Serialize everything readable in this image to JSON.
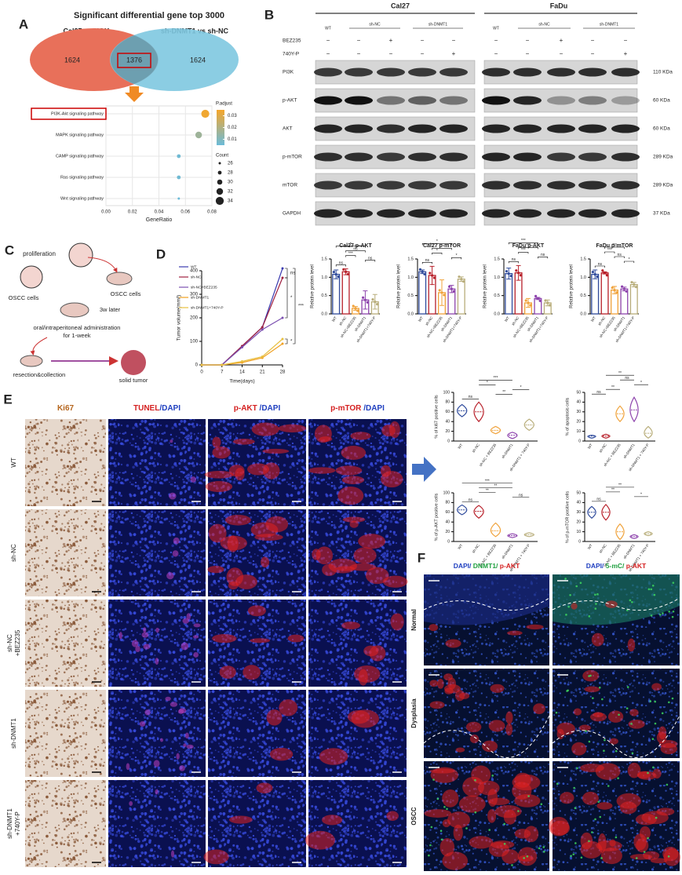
{
  "panel_labels": [
    "A",
    "B",
    "C",
    "D",
    "E",
    "F"
  ],
  "venn": {
    "title": "Significant differential gene top 3000",
    "left_label": "Cal27 vs NOK",
    "right_label": "sh-DNMT1 vs sh-NC",
    "left_only": 1624,
    "overlap": 1376,
    "right_only": 1624
  },
  "dotplot": {
    "pathways": [
      "PI3K-Akt signaling pathway",
      "MAPK signaling pathway",
      "CAMP signaling pathway",
      "Ras signaling pathway",
      "Wnt signaling pathway"
    ],
    "gene_ratio": [
      0.075,
      0.07,
      0.055,
      0.055,
      0.055
    ],
    "count": [
      34,
      32,
      28,
      28,
      26
    ],
    "p_adjust": [
      0.034,
      0.016,
      0.006,
      0.006,
      0.005
    ],
    "xlim": [
      0,
      0.08
    ],
    "xticks": [
      {
        "value": 0,
        "label": "0.00"
      },
      {
        "value": 0.02,
        "label": "0.02"
      },
      {
        "value": 0.04,
        "label": "0.04"
      },
      {
        "value": 0.06,
        "label": "0.06"
      },
      {
        "value": 0.08,
        "label": "0.08"
      }
    ],
    "xlabel": "GeneRatio",
    "color_title": "P.adjust",
    "color_lim": [
      0.005,
      0.035
    ],
    "color_ticks": [
      0.03,
      0.02,
      0.01
    ],
    "colors": [
      "#6bbbd9",
      "#f5a62b"
    ],
    "size_title": "Count",
    "size_ticks": [
      26,
      28,
      30,
      32,
      34
    ]
  },
  "western": {
    "cell_lines": [
      "Cal27",
      "FaDu"
    ],
    "groups": [
      "WT",
      "sh-NC",
      "sh-DNMT1"
    ],
    "treatments": [
      {
        "name": "BEZ235",
        "signs": [
          "−",
          "−",
          "+",
          "−",
          "−"
        ]
      },
      {
        "name": "740Y-P",
        "signs": [
          "−",
          "−",
          "−",
          "−",
          "+"
        ]
      }
    ],
    "proteins": [
      "PI3K",
      "p-AKT",
      "AKT",
      "p-mTOR",
      "mTOR",
      "GAPDH"
    ],
    "sizes": [
      "110 KDa",
      "60 KDa",
      "60 KDa",
      "289 KDa",
      "289 KDa",
      "37 KDa"
    ]
  },
  "bar_charts": [
    {
      "title": "Cal27 p-AKT",
      "ylabel": "Relative protein level",
      "categories": [
        "WT",
        "sh-NC",
        "sh-NC+BEZ235",
        "sh-DNMT1",
        "sh-DNMT1+740Y-P"
      ],
      "values": [
        1.08,
        1.15,
        0.15,
        0.38,
        0.33
      ],
      "errors": [
        0.12,
        0.08,
        0.05,
        0.25,
        0.2
      ],
      "colors": [
        "#2f4b9c",
        "#b8202a",
        "#f0a23a",
        "#8e44ad",
        "#b8ad7a"
      ],
      "ylim": [
        0,
        1.5
      ],
      "yticks": [
        {
          "value": 0,
          "label": "0.0"
        },
        {
          "value": 0.5,
          "label": "0.5"
        },
        {
          "value": 1,
          "label": "1.0"
        },
        {
          "value": 1.5,
          "label": "1.5"
        }
      ],
      "annotations": [
        {
          "text": "ns",
          "from": 0,
          "to": 1
        },
        {
          "text": "ns",
          "from": 3,
          "to": 4
        },
        {
          "text": "***",
          "from": 1,
          "to": 2
        },
        {
          "text": "ns",
          "from": 1,
          "to": 3
        },
        {
          "text": "*",
          "from": 0,
          "to": 3
        }
      ]
    },
    {
      "title": "Cal27 p-mTOR",
      "ylabel": "Relative protein level",
      "categories": [
        "WT",
        "sh-NC",
        "sh-NC+BEZ235",
        "sh-DNMT1",
        "sh-DNMT1+740Y-P"
      ],
      "values": [
        1.15,
        1.05,
        0.58,
        0.68,
        0.95
      ],
      "errors": [
        0.05,
        0.25,
        0.35,
        0.1,
        0.06
      ],
      "colors": [
        "#2f4b9c",
        "#b8202a",
        "#f0a23a",
        "#8e44ad",
        "#b8ad7a"
      ],
      "ylim": [
        0,
        1.5
      ],
      "yticks": [
        {
          "value": 0,
          "label": "0.0"
        },
        {
          "value": 0.5,
          "label": "0.5"
        },
        {
          "value": 1,
          "label": "1.0"
        },
        {
          "value": 1.5,
          "label": "1.5"
        }
      ],
      "annotations": [
        {
          "text": "ns",
          "from": 0,
          "to": 1
        },
        {
          "text": "*",
          "from": 3,
          "to": 4
        },
        {
          "text": "*",
          "from": 1,
          "to": 2
        },
        {
          "text": "*",
          "from": 1,
          "to": 3
        },
        {
          "text": "*",
          "from": 0,
          "to": 3
        }
      ]
    },
    {
      "title": "FaDu p-AKT",
      "ylabel": "Relative protein level",
      "categories": [
        "WT",
        "sh-NC",
        "sh-NC+BEZ235",
        "sh-DNMT1",
        "sh-DNMT1+740Y-P"
      ],
      "values": [
        1.1,
        1.12,
        0.3,
        0.42,
        0.3
      ],
      "errors": [
        0.15,
        0.2,
        0.12,
        0.03,
        0.08
      ],
      "colors": [
        "#2f4b9c",
        "#b8202a",
        "#f0a23a",
        "#8e44ad",
        "#b8ad7a"
      ],
      "ylim": [
        0,
        1.5
      ],
      "yticks": [
        {
          "value": 0,
          "label": "0.0"
        },
        {
          "value": 0.5,
          "label": "0.5"
        },
        {
          "value": 1,
          "label": "1.0"
        },
        {
          "value": 1.5,
          "label": "1.5"
        }
      ],
      "annotations": [
        {
          "text": "ns",
          "from": 0,
          "to": 1
        },
        {
          "text": "ns",
          "from": 3,
          "to": 4
        },
        {
          "text": "***",
          "from": 1,
          "to": 2
        },
        {
          "text": "***",
          "from": 1,
          "to": 3
        },
        {
          "text": "***",
          "from": 0,
          "to": 3
        }
      ]
    },
    {
      "title": "FaDu p-mTOR",
      "ylabel": "Relative protein level",
      "categories": [
        "WT",
        "sh-NC",
        "sh-NC+BEZ235",
        "sh-DNMT1",
        "sh-DNMT1+740Y-P"
      ],
      "values": [
        1.08,
        1.12,
        0.65,
        0.68,
        0.8
      ],
      "errors": [
        0.12,
        0.03,
        0.1,
        0.05,
        0.06
      ],
      "colors": [
        "#2f4b9c",
        "#b8202a",
        "#f0a23a",
        "#8e44ad",
        "#b8ad7a"
      ],
      "ylim": [
        0,
        1.5
      ],
      "yticks": [
        {
          "value": 0,
          "label": "0.0"
        },
        {
          "value": 0.5,
          "label": "0.5"
        },
        {
          "value": 1,
          "label": "1.0"
        },
        {
          "value": 1.5,
          "label": "1.5"
        }
      ],
      "annotations": [
        {
          "text": "ns",
          "from": 0,
          "to": 1
        },
        {
          "text": "*",
          "from": 3,
          "to": 4
        },
        {
          "text": "ns",
          "from": 2,
          "to": 3
        },
        {
          "text": "***",
          "from": 1,
          "to": 2
        },
        {
          "text": "***",
          "from": 1,
          "to": 3
        }
      ]
    }
  ],
  "schematic": {
    "labels": [
      "proliferation",
      "OSCC cells",
      "OSCC cells",
      "3w later",
      "oral/intraperitoneal administration",
      "for 1-week",
      "resection&collection",
      "solid tumor"
    ]
  },
  "tumor_chart": {
    "type": "line",
    "ylabel": "Tumor volume(mm³)",
    "xlabel": "Time(days)",
    "x": [
      0,
      7,
      14,
      21,
      28
    ],
    "xlim": [
      0,
      28
    ],
    "xticks": [
      0,
      7,
      14,
      21,
      28
    ],
    "ylim": [
      0,
      400
    ],
    "yticks": [
      0,
      100,
      200,
      300,
      400
    ],
    "series": [
      {
        "name": "WT",
        "color": "#3b3bb0",
        "values": [
          0,
          0,
          80,
          160,
          410
        ]
      },
      {
        "name": "sh-NC",
        "color": "#a02040",
        "values": [
          0,
          0,
          80,
          160,
          370
        ]
      },
      {
        "name": "sh-NC+BEZ235",
        "color": "#7b4fb0",
        "values": [
          0,
          0,
          75,
          150,
          200
        ]
      },
      {
        "name": "sh-DNMT1",
        "color": "#f0a020",
        "values": [
          0,
          0,
          10,
          30,
          90
        ]
      },
      {
        "name": "sh-DNMT1+740Y-P",
        "color": "#e8c040",
        "values": [
          0,
          0,
          15,
          35,
          110
        ]
      }
    ],
    "annotations": [
      {
        "text": "ns",
        "from": 0,
        "to": 1
      },
      {
        "text": "*",
        "from": 1,
        "to": 2
      },
      {
        "text": "*",
        "from": 3,
        "to": 4
      },
      {
        "text": "***",
        "from": 0,
        "to": 3
      }
    ]
  },
  "ihc": {
    "columns": [
      [
        {
          "text": "Ki67",
          "color": "#b5651d"
        }
      ],
      [
        {
          "text": "TUNEL",
          "color": "#d42020"
        },
        {
          "text": "/DAPI",
          "color": "#2040c0"
        }
      ],
      [
        {
          "text": "p-AKT ",
          "color": "#d42020"
        },
        {
          "text": "/DAPI",
          "color": "#2040c0"
        }
      ],
      [
        {
          "text": "p-mTOR ",
          "color": "#d42020"
        },
        {
          "text": "/DAPI",
          "color": "#2040c0"
        }
      ]
    ],
    "rows": [
      [
        "WT"
      ],
      [
        "sh-NC"
      ],
      [
        "sh-NC",
        "+BEZ235"
      ],
      [
        "sh-DNMT1"
      ],
      [
        "sh-DNMT1",
        "+740Y-P"
      ]
    ]
  },
  "violins": [
    {
      "ylabel": "% of ki67 positive cells",
      "categories": [
        "WT",
        "sh-NC",
        "sh-NC + BEZ235",
        "sh-DNMT1",
        "sh-DNMT1 + 740Y-P"
      ],
      "values": [
        62,
        60,
        22,
        12,
        33
      ],
      "ranges": [
        [
          50,
          75
        ],
        [
          40,
          80
        ],
        [
          15,
          30
        ],
        [
          5,
          18
        ],
        [
          22,
          45
        ]
      ],
      "ylim": [
        0,
        100
      ],
      "yticks": [
        0,
        20,
        40,
        60,
        80,
        100
      ],
      "colors": [
        "#2f4b9c",
        "#b8202a",
        "#f0a23a",
        "#8e44ad",
        "#b8ad7a"
      ],
      "annotations": [
        {
          "text": "ns",
          "from": 0,
          "to": 1
        },
        {
          "text": "**",
          "from": 2,
          "to": 3
        },
        {
          "text": "*",
          "from": 3,
          "to": 4
        },
        {
          "text": "*",
          "from": 1,
          "to": 2
        },
        {
          "text": "***",
          "from": 1,
          "to": 3
        }
      ]
    },
    {
      "ylabel": "% of apoptosis cells",
      "categories": [
        "WT",
        "sh-NC",
        "sh-NC + BEZ235",
        "sh-DNMT1",
        "sh-DNMT1 + 740Y-P"
      ],
      "values": [
        5,
        5,
        28,
        32,
        8
      ],
      "ranges": [
        [
          3,
          6
        ],
        [
          3,
          7
        ],
        [
          20,
          36
        ],
        [
          20,
          45
        ],
        [
          3,
          15
        ]
      ],
      "ylim": [
        0,
        50
      ],
      "yticks": [
        0,
        10,
        20,
        30,
        40,
        50
      ],
      "colors": [
        "#2f4b9c",
        "#b8202a",
        "#f0a23a",
        "#8e44ad",
        "#b8ad7a"
      ],
      "annotations": [
        {
          "text": "ns",
          "from": 0,
          "to": 1
        },
        {
          "text": "**",
          "from": 1,
          "to": 2
        },
        {
          "text": "*",
          "from": 3,
          "to": 4
        },
        {
          "text": "ns",
          "from": 2,
          "to": 3
        },
        {
          "text": "**",
          "from": 1,
          "to": 3
        }
      ]
    },
    {
      "ylabel": "% of p-AKT positive cells",
      "categories": [
        "WT",
        "sh-NC",
        "sh-NC + BEZ235",
        "sh-DNMT1",
        "sh-DNMT1 + 740Y-P"
      ],
      "values": [
        65,
        62,
        22,
        12,
        14
      ],
      "ranges": [
        [
          55,
          75
        ],
        [
          48,
          74
        ],
        [
          10,
          38
        ],
        [
          8,
          16
        ],
        [
          10,
          18
        ]
      ],
      "ylim": [
        0,
        100
      ],
      "yticks": [
        0,
        20,
        40,
        60,
        80,
        100
      ],
      "colors": [
        "#2f4b9c",
        "#b8202a",
        "#f0a23a",
        "#8e44ad",
        "#b8ad7a"
      ],
      "annotations": [
        {
          "text": "ns",
          "from": 0,
          "to": 1
        },
        {
          "text": "ns",
          "from": 3,
          "to": 4
        },
        {
          "text": "**",
          "from": 1,
          "to": 2
        },
        {
          "text": "**",
          "from": 1,
          "to": 3
        },
        {
          "text": "***",
          "from": 0,
          "to": 3
        }
      ]
    },
    {
      "ylabel": "% of p-mTOR positive cells",
      "categories": [
        "WT",
        "sh-NC",
        "sh-NC + BEZ235",
        "sh-DNMT1",
        "sh-DNMT1 + 740Y-P"
      ],
      "values": [
        30,
        30,
        10,
        5,
        8
      ],
      "ranges": [
        [
          24,
          36
        ],
        [
          22,
          38
        ],
        [
          2,
          18
        ],
        [
          3,
          7
        ],
        [
          6,
          10
        ]
      ],
      "ylim": [
        0,
        50
      ],
      "yticks": [
        0,
        10,
        20,
        30,
        40,
        50
      ],
      "colors": [
        "#2f4b9c",
        "#b8202a",
        "#f0a23a",
        "#8e44ad",
        "#b8ad7a"
      ],
      "annotations": [
        {
          "text": "ns",
          "from": 0,
          "to": 1
        },
        {
          "text": "*",
          "from": 3,
          "to": 4
        },
        {
          "text": "**",
          "from": 1,
          "to": 2
        },
        {
          "text": "**",
          "from": 1,
          "to": 3
        }
      ]
    }
  ],
  "if_panel": {
    "columns": [
      [
        {
          "text": "DAPI/",
          "color": "#2040c0"
        },
        {
          "text": " DNMT1/",
          "color": "#20a040"
        },
        {
          "text": " p-AKT",
          "color": "#d42020"
        }
      ],
      [
        {
          "text": "DAPI/",
          "color": "#2040c0"
        },
        {
          "text": " 5-mC/",
          "color": "#20a040"
        },
        {
          "text": " p-AKT",
          "color": "#d42020"
        }
      ]
    ],
    "rows": [
      "Normal",
      "Dysplasia",
      "OSCC"
    ]
  }
}
